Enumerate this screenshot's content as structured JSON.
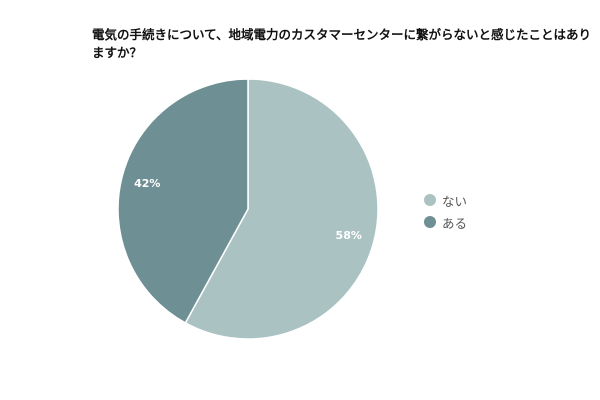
{
  "chart_data": {
    "type": "pie",
    "title": "電気の手続きについて、地域電力のカスタマーセンターに繋がらないと感じたことはありますか？",
    "slices": [
      {
        "label": "ない",
        "value": 58,
        "display": "58%",
        "color": "#abc2c3"
      },
      {
        "label": "ある",
        "value": 42,
        "display": "42%",
        "color": "#6e8f93"
      }
    ],
    "legend_position": "right"
  }
}
